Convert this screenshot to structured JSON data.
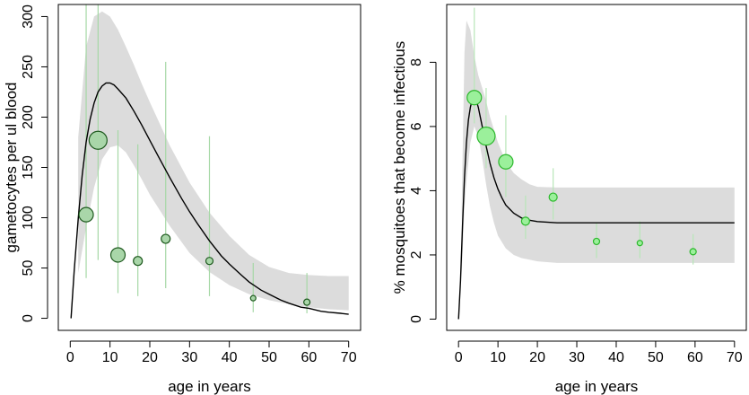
{
  "chart_data": [
    {
      "type": "scatter",
      "title": "",
      "xlabel": "age in years",
      "ylabel": "gametocytes per ul blood",
      "xlim": [
        -3,
        73
      ],
      "ylim": [
        -12,
        312
      ],
      "xticks": [
        0,
        10,
        20,
        30,
        40,
        50,
        60,
        70
      ],
      "yticks": [
        0,
        50,
        100,
        150,
        200,
        250,
        300
      ],
      "colors": {
        "band": "#dcdcdc",
        "curve": "#000000",
        "point_fill": "#a9d6a9",
        "point_stroke": "#1f5a1f",
        "error_bar": "#a6d8a6"
      },
      "band": {
        "x": [
          2,
          4,
          6,
          8,
          10,
          12,
          14,
          16,
          18,
          20,
          25,
          30,
          35,
          40,
          45,
          50,
          55,
          60,
          65,
          70
        ],
        "lower": [
          45,
          90,
          130,
          158,
          170,
          172,
          165,
          152,
          138,
          123,
          92,
          65,
          46,
          33,
          24,
          18,
          14,
          11,
          9,
          8
        ],
        "upper": [
          180,
          270,
          300,
          305,
          300,
          287,
          270,
          252,
          233,
          215,
          172,
          135,
          105,
          82,
          63,
          51,
          45,
          43,
          42,
          42
        ]
      },
      "curve": {
        "x": [
          0.2,
          1,
          2,
          3,
          4,
          5,
          6,
          7,
          8,
          9,
          10,
          11,
          12,
          14,
          16,
          18,
          20,
          22,
          25,
          28,
          30,
          32,
          35,
          38,
          40,
          43,
          45,
          48,
          50,
          53,
          55,
          58,
          60,
          63,
          65,
          68,
          70
        ],
        "y": [
          0,
          47,
          99,
          142,
          175,
          198,
          214,
          225,
          231,
          234,
          234,
          232,
          228,
          219,
          206,
          192,
          177,
          162,
          140,
          119,
          106,
          94,
          77,
          62,
          54,
          43,
          36,
          28,
          24,
          18,
          15,
          11,
          10,
          7,
          6,
          5,
          4
        ]
      },
      "points": [
        {
          "x": 4,
          "y": 103,
          "lo": 40,
          "hi": 312,
          "size": 8
        },
        {
          "x": 7,
          "y": 177,
          "lo": 58,
          "hi": 312,
          "size": 10
        },
        {
          "x": 12,
          "y": 63,
          "lo": 25,
          "hi": 187,
          "size": 8
        },
        {
          "x": 17,
          "y": 57,
          "lo": 22,
          "hi": 173,
          "size": 5
        },
        {
          "x": 24,
          "y": 79,
          "lo": 30,
          "hi": 255,
          "size": 5
        },
        {
          "x": 35,
          "y": 57,
          "lo": 22,
          "hi": 181,
          "size": 4
        },
        {
          "x": 46,
          "y": 20,
          "lo": 6,
          "hi": 55,
          "size": 3
        },
        {
          "x": 59.5,
          "y": 16,
          "lo": 5,
          "hi": 45,
          "size": 3.5
        }
      ]
    },
    {
      "type": "scatter",
      "title": "",
      "xlabel": "age in years",
      "ylabel": "% mosquitoes that become infectious",
      "xlim": [
        -3,
        73
      ],
      "ylim": [
        -0.35,
        9.8
      ],
      "xticks": [
        0,
        10,
        20,
        30,
        40,
        50,
        60,
        70
      ],
      "yticks": [
        0,
        2,
        4,
        6,
        8
      ],
      "colors": {
        "band": "#dcdcdc",
        "curve": "#000000",
        "point_fill": "#9bf09b",
        "point_stroke": "#2db82d",
        "error_bar": "#b8e6b8"
      },
      "band": {
        "x": [
          0.8,
          1.5,
          2,
          3,
          4,
          5,
          6,
          7,
          8,
          9,
          10,
          12,
          14,
          16,
          18,
          20,
          25,
          30,
          40,
          50,
          60,
          70
        ],
        "lower": [
          1.4,
          3.5,
          4.3,
          5.5,
          6.0,
          5.7,
          5.0,
          4.2,
          3.5,
          3.0,
          2.6,
          2.2,
          2.0,
          1.9,
          1.85,
          1.8,
          1.75,
          1.75,
          1.75,
          1.75,
          1.75,
          1.75
        ],
        "upper": [
          3.5,
          8.3,
          9.3,
          9.0,
          8.2,
          7.6,
          7.2,
          6.8,
          6.3,
          5.9,
          5.5,
          4.9,
          4.55,
          4.35,
          4.2,
          4.12,
          4.1,
          4.1,
          4.1,
          4.1,
          4.1,
          4.1
        ]
      },
      "curve": {
        "x": [
          0,
          0.5,
          1,
          1.5,
          2,
          2.5,
          3,
          3.5,
          4,
          4.5,
          5,
          5.5,
          6,
          7,
          8,
          9,
          10,
          11,
          12,
          14,
          16,
          18,
          20,
          25,
          30,
          40,
          50,
          60,
          70
        ],
        "y": [
          0,
          1.2,
          2.9,
          4.4,
          5.5,
          6.2,
          6.6,
          6.85,
          6.9,
          6.8,
          6.6,
          6.3,
          6.0,
          5.4,
          4.85,
          4.4,
          4.05,
          3.78,
          3.55,
          3.3,
          3.15,
          3.08,
          3.04,
          3.0,
          3.0,
          3.0,
          3.0,
          3.0,
          3.0
        ]
      },
      "points": [
        {
          "x": 4,
          "y": 6.9,
          "lo": 6.1,
          "hi": 9.7,
          "size": 8
        },
        {
          "x": 7,
          "y": 5.7,
          "lo": 4.7,
          "hi": 7.2,
          "size": 10
        },
        {
          "x": 12,
          "y": 4.9,
          "lo": 3.8,
          "hi": 6.35,
          "size": 8
        },
        {
          "x": 17,
          "y": 3.05,
          "lo": 2.5,
          "hi": 3.85,
          "size": 4.5
        },
        {
          "x": 24,
          "y": 3.8,
          "lo": 3.1,
          "hi": 4.7,
          "size": 4.5
        },
        {
          "x": 35,
          "y": 2.42,
          "lo": 1.9,
          "hi": 3.0,
          "size": 3.5
        },
        {
          "x": 46,
          "y": 2.37,
          "lo": 1.9,
          "hi": 3.05,
          "size": 3
        },
        {
          "x": 59.5,
          "y": 2.1,
          "lo": 1.7,
          "hi": 2.65,
          "size": 3.5
        }
      ]
    }
  ]
}
